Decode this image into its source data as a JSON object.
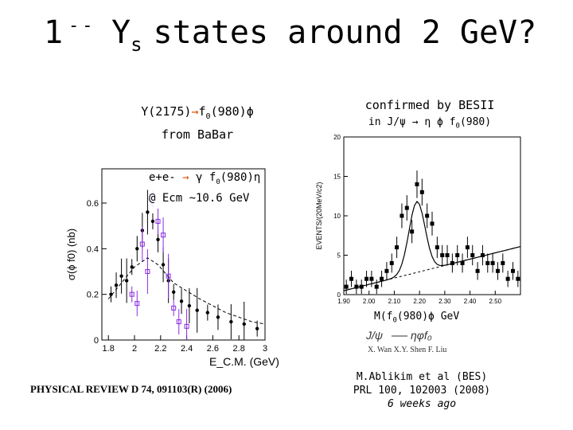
{
  "slide": {
    "title_main": "1",
    "title_sup": "--",
    "title_y": "Y",
    "title_sub": "s",
    "title_rest": "states around 2 GeV?"
  },
  "left_panel": {
    "label_line1_a": "Y(2175)",
    "label_line1_arrow": "→",
    "label_line1_b": "f",
    "label_line1_sub": "0",
    "label_line1_c": "(980)ϕ",
    "label_line2": "from BaBar",
    "overlay_a": "e+e-",
    "overlay_arrow": "→",
    "overlay_b": "γ f",
    "overlay_sub": "0",
    "overlay_c": "(980)η",
    "overlay_line2": "@ Ecm ~10.6 GeV",
    "reference": "PHYSICAL REVIEW D 74, 091103(R) (2006)"
  },
  "right_panel": {
    "header": "confirmed by BESII",
    "decay_a": "in J/ψ",
    "decay_arrow": "→",
    "decay_b": "η ϕ f",
    "decay_sub": "0",
    "decay_c": "(980)",
    "mass_label_a": "M(f",
    "mass_label_sub": "0",
    "mass_label_b": "(980)ϕ GeV",
    "authors": "X. Wan  X.Y. Shen  F. Liu",
    "citation_line1": "M.Ablikim et al (BES)",
    "citation_line2": "PRL 100, 102003 (2008)",
    "citation_line3": "6 weeks ago"
  },
  "chart_data": [
    {
      "type": "scatter",
      "title": "",
      "xlabel": "E_C.M. (GeV)",
      "ylabel": "σ(ϕ f0) (nb)",
      "xlim": [
        1.75,
        3.0
      ],
      "ylim": [
        0,
        0.75
      ],
      "x_ticks": [
        "1.8",
        "2",
        "2.2",
        "2.4",
        "2.6",
        "2.8",
        "3"
      ],
      "y_ticks": [
        "0",
        "0.2",
        "0.4",
        "0.6"
      ],
      "series": [
        {
          "name": "BaBar (black)",
          "x": [
            1.82,
            1.86,
            1.9,
            1.94,
            1.98,
            2.02,
            2.06,
            2.1,
            2.14,
            2.18,
            2.22,
            2.26,
            2.3,
            2.36,
            2.42,
            2.48,
            2.56,
            2.64,
            2.74,
            2.84,
            2.94
          ],
          "y": [
            0.2,
            0.24,
            0.28,
            0.26,
            0.32,
            0.4,
            0.48,
            0.56,
            0.52,
            0.44,
            0.33,
            0.26,
            0.21,
            0.17,
            0.15,
            0.13,
            0.12,
            0.1,
            0.08,
            0.07,
            0.05
          ]
        },
        {
          "name": "BaBar (purple)",
          "x": [
            1.98,
            2.02,
            2.06,
            2.1,
            2.14,
            2.18,
            2.22,
            2.26,
            2.3,
            2.34,
            2.4
          ],
          "y": [
            0.2,
            0.16,
            0.42,
            0.3,
            0.62,
            0.52,
            0.46,
            0.28,
            0.14,
            0.08,
            0.06
          ]
        }
      ]
    },
    {
      "type": "bar",
      "title": "",
      "xlabel": "M(f0(980)ϕ) GeV",
      "ylabel": "EVENTS/(20MeV/c2)",
      "xlim": [
        1.9,
        2.6
      ],
      "ylim": [
        0,
        20
      ],
      "x_ticks": [
        "1.90",
        "2.00",
        "2.10",
        "2.20",
        "2.30",
        "2.40",
        "2.50"
      ],
      "y_ticks": [
        "0",
        "5",
        "10",
        "15",
        "20"
      ],
      "x": [
        1.91,
        1.93,
        1.95,
        1.97,
        1.99,
        2.01,
        2.03,
        2.05,
        2.07,
        2.09,
        2.11,
        2.13,
        2.15,
        2.17,
        2.19,
        2.21,
        2.23,
        2.25,
        2.27,
        2.29,
        2.31,
        2.33,
        2.35,
        2.37,
        2.39,
        2.41,
        2.43,
        2.45,
        2.47,
        2.49,
        2.51,
        2.53,
        2.55,
        2.57,
        2.59
      ],
      "values": [
        1,
        2,
        1,
        1,
        2,
        2,
        1,
        2,
        3,
        4,
        6,
        10,
        11,
        8,
        14,
        13,
        10,
        9,
        6,
        5,
        5,
        4,
        5,
        4,
        6,
        5,
        3,
        5,
        4,
        4,
        3,
        4,
        2,
        3,
        2
      ]
    }
  ]
}
